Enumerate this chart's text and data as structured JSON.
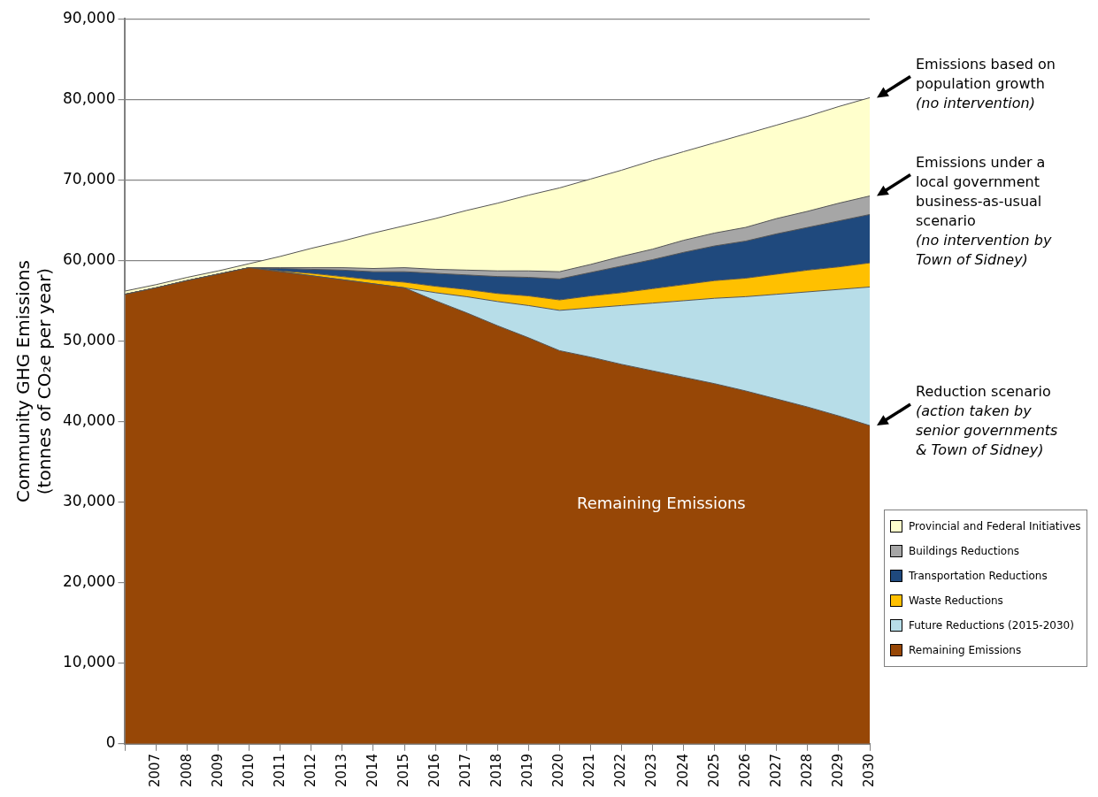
{
  "chart_data": {
    "type": "area",
    "stacked": true,
    "ylabel": "Community GHG Emissions\n(tonnes of CO₂e per year)",
    "categories": [
      null,
      "2007",
      "2008",
      "2009",
      "2010",
      "2011",
      "2012",
      "2013",
      "2014",
      "2015",
      "2016",
      "2017",
      "2018",
      "2019",
      "2020",
      "2021",
      "2022",
      "2023",
      "2024",
      "2025",
      "2026",
      "2027",
      "2028",
      "2029",
      "2030"
    ],
    "series": [
      {
        "name": "Remaining Emissions",
        "color": "#974706",
        "values": [
          55800,
          56600,
          57500,
          58300,
          59100,
          58600,
          58100,
          57600,
          57100,
          56600,
          55000,
          53500,
          51900,
          50400,
          48800,
          48000,
          47100,
          46300,
          45500,
          44700,
          43800,
          42800,
          41800,
          40700,
          39500
        ]
      },
      {
        "name": "Future Reductions (2015-2030)",
        "color": "#b7dde8",
        "values": [
          0,
          0,
          0,
          0,
          0,
          0,
          0,
          0,
          0,
          0,
          1000,
          2000,
          3000,
          4000,
          5000,
          6100,
          7300,
          8400,
          9500,
          10600,
          11700,
          13000,
          14300,
          15700,
          17200
        ]
      },
      {
        "name": "Waste Reductions",
        "color": "#ffc000",
        "values": [
          0,
          0,
          0,
          0,
          0,
          100,
          300,
          400,
          500,
          700,
          800,
          900,
          1000,
          1200,
          1300,
          1500,
          1600,
          1800,
          2000,
          2200,
          2300,
          2500,
          2700,
          2800,
          3000
        ]
      },
      {
        "name": "Transportation Reductions",
        "color": "#1f497d",
        "values": [
          0,
          0,
          0,
          0,
          0,
          300,
          500,
          800,
          1000,
          1300,
          1600,
          1800,
          2100,
          2300,
          2600,
          2900,
          3300,
          3600,
          4000,
          4300,
          4600,
          5000,
          5300,
          5700,
          6000
        ]
      },
      {
        "name": "Buildings Reductions",
        "color": "#a6a6a6",
        "values": [
          0,
          0,
          0,
          0,
          0,
          100,
          200,
          300,
          400,
          500,
          500,
          600,
          700,
          800,
          900,
          1000,
          1200,
          1300,
          1500,
          1600,
          1700,
          1900,
          2000,
          2200,
          2300
        ]
      },
      {
        "name": "Provincial and Federal Initiatives",
        "color": "#ffffcc",
        "values": [
          400,
          400,
          400,
          400,
          500,
          1400,
          2400,
          3300,
          4400,
          5200,
          6300,
          7400,
          8400,
          9400,
          10400,
          10600,
          10700,
          11000,
          11000,
          11200,
          11600,
          11600,
          11800,
          12000,
          12200
        ]
      }
    ],
    "ylim": [
      0,
      90000
    ],
    "yticks": [
      0,
      {
        "value": 10000,
        "label": "10,000"
      },
      {
        "value": 20000,
        "label": "20,000"
      },
      {
        "value": 30000,
        "label": "30,000"
      },
      {
        "value": 40000,
        "label": "40,000"
      },
      {
        "value": 50000,
        "label": "50,000"
      },
      {
        "value": 60000,
        "label": "60,000"
      },
      {
        "value": 70000,
        "label": "70,000"
      },
      {
        "value": 80000,
        "label": "80,000"
      },
      {
        "value": 90000,
        "label": "90,000"
      }
    ],
    "grid": "y",
    "legend": "bottom right",
    "annotations": [
      "Remaining Emissions",
      "Emissions based on population growth (no intervention)",
      "Emissions under a local government business-as-usual scenario (no intervention by Town of Sidney)",
      "Reduction scenario (action taken by senior governments & Town of Sidney)"
    ]
  }
}
